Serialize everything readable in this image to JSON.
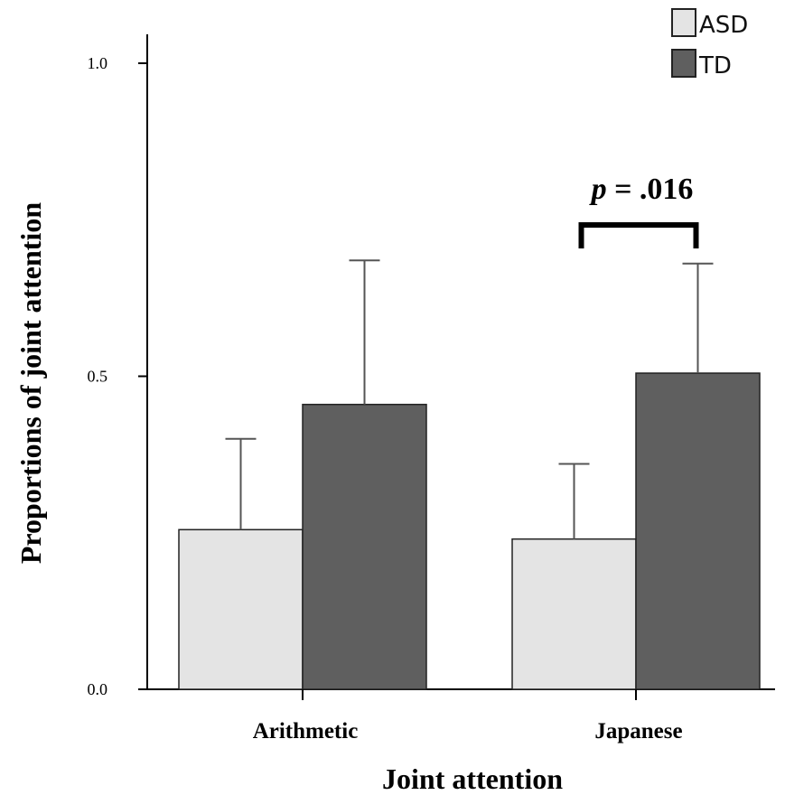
{
  "chart_data": {
    "type": "bar",
    "title": "",
    "xlabel": "Joint attention",
    "ylabel": "Proportions of joint attention",
    "categories": [
      "Arithmetic",
      "Japanese"
    ],
    "series": [
      {
        "name": "ASD",
        "values": [
          0.255,
          0.24
        ],
        "error_upper": [
          0.4,
          0.36
        ],
        "color": "#e4e4e4"
      },
      {
        "name": "TD",
        "values": [
          0.455,
          0.505
        ],
        "error_upper": [
          0.685,
          0.68
        ],
        "color": "#5f5f5f"
      }
    ],
    "ylim": [
      0.0,
      1.05
    ],
    "yticks": [
      0.0,
      0.5,
      1.0
    ],
    "ytick_labels": [
      "0.0",
      "0.5",
      "1.0"
    ],
    "grid": false,
    "legend_position": "top-right",
    "annotations": [
      {
        "category": "Japanese",
        "p_symbol": "p",
        "text": " = .016"
      }
    ]
  }
}
